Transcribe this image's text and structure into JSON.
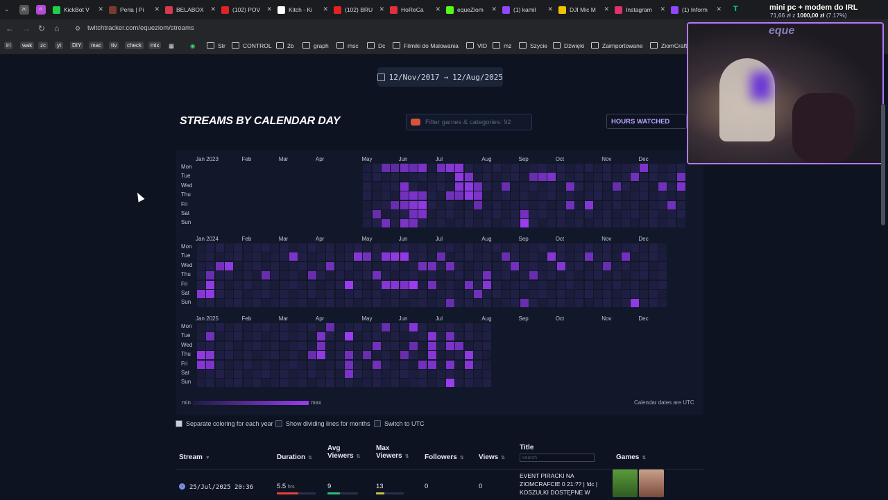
{
  "browser": {
    "tabs": [
      {
        "label": "KickBot V",
        "color": "#1fcf4a"
      },
      {
        "label": "Perła | Pi",
        "color": "#7a3b2e"
      },
      {
        "label": "BELABOX",
        "color": "#d43b50"
      },
      {
        "label": "(102) POV",
        "color": "#e52222"
      },
      {
        "label": "Kitch - Ki",
        "color": "#ffffff"
      },
      {
        "label": "(102) BRU",
        "color": "#e52222"
      },
      {
        "label": "HoReCa",
        "color": "#e0303c"
      },
      {
        "label": "equeZiom",
        "color": "#53fc18"
      },
      {
        "label": "(1) kamil",
        "color": "#9146ff"
      },
      {
        "label": "DJI Mic M",
        "color": "#f2c200"
      },
      {
        "label": "Instagram",
        "color": "#e1306c"
      },
      {
        "label": "(1) Inform",
        "color": "#9146ff"
      }
    ],
    "left_tabs": [
      "zc",
      "ri"
    ],
    "url": "twitchtracker.com/equeziom/streams",
    "bookmarks": {
      "tags": [
        "iri",
        "wak",
        "zc",
        "yt",
        "DIY",
        "mac",
        "ttv",
        "check",
        "mix"
      ],
      "folders": [
        "Str",
        "CONTROL",
        "2b",
        "graph",
        "msc",
        "Dc",
        "Filmiki do Malowania",
        "VID",
        "mz",
        "Szycie",
        "Dźwięki",
        "Zaimportowane",
        "ZiomCraft"
      ]
    }
  },
  "overlay": {
    "title": "mini pc + modem do IRL",
    "progress_prefix": "71,66 zł z",
    "progress_goal": "1000,00 zł",
    "progress_pct": "(7.17%)",
    "webcam_text": "eque"
  },
  "date_range": {
    "start": "12/Nov/2017",
    "arrow": "→",
    "end": "12/Aug/2025"
  },
  "section": {
    "title": "STREAMS BY CALENDAR DAY",
    "filter_placeholder": "Filter games & categories: 92",
    "hours_button": "HOURS WATCHED"
  },
  "chart_data": {
    "type": "heatmap",
    "title": "STREAMS BY CALENDAR DAY",
    "days": [
      "Mon",
      "Tue",
      "Wed",
      "Thu",
      "Fri",
      "Sat",
      "Sun"
    ],
    "years": [
      {
        "label": "Jan 2023",
        "months": [
          {
            "label": "Jan 2023",
            "week": 0
          },
          {
            "label": "Feb",
            "week": 5
          },
          {
            "label": "Mar",
            "week": 9
          },
          {
            "label": "Apr",
            "week": 13
          },
          {
            "label": "May",
            "week": 18
          },
          {
            "label": "Jun",
            "week": 22
          },
          {
            "label": "Jul",
            "week": 26
          },
          {
            "label": "Aug",
            "week": 31
          },
          {
            "label": "Sep",
            "week": 35
          },
          {
            "label": "Oct",
            "week": 39
          },
          {
            "label": "Nov",
            "week": 44
          },
          {
            "label": "Dec",
            "week": 48
          }
        ],
        "active_weeks": [
          18,
          52
        ],
        "streams": [
          [
            20,
            0,
            0.5
          ],
          [
            21,
            0,
            0.4
          ],
          [
            22,
            0,
            0.6
          ],
          [
            23,
            0,
            0.5
          ],
          [
            24,
            0,
            0.7
          ],
          [
            26,
            0,
            0.6
          ],
          [
            27,
            0,
            0.8
          ],
          [
            28,
            0,
            0.8
          ],
          [
            28,
            1,
            0.9
          ],
          [
            29,
            1,
            0.7
          ],
          [
            29,
            2,
            0.9
          ],
          [
            28,
            2,
            0.8
          ],
          [
            30,
            2,
            0.6
          ],
          [
            30,
            3,
            0.7
          ],
          [
            29,
            3,
            0.9
          ],
          [
            28,
            3,
            0.6
          ],
          [
            22,
            2,
            0.7
          ],
          [
            22,
            3,
            0.6
          ],
          [
            23,
            4,
            0.8
          ],
          [
            23,
            3,
            0.7
          ],
          [
            24,
            4,
            0.9
          ],
          [
            24,
            3,
            0.6
          ],
          [
            22,
            4,
            0.6
          ],
          [
            21,
            4,
            0.5
          ],
          [
            24,
            5,
            0.7
          ],
          [
            23,
            5,
            0.6
          ],
          [
            20,
            6,
            0.6
          ],
          [
            22,
            6,
            0.7
          ],
          [
            23,
            6,
            0.6
          ],
          [
            35,
            6,
            1.0
          ],
          [
            37,
            1,
            0.6
          ],
          [
            38,
            1,
            0.7
          ],
          [
            40,
            2,
            0.6
          ],
          [
            42,
            4,
            0.8
          ],
          [
            40,
            4,
            0.6
          ],
          [
            45,
            2,
            0.5
          ],
          [
            47,
            1,
            0.6
          ],
          [
            48,
            0,
            0.7
          ],
          [
            50,
            2,
            0.6
          ],
          [
            52,
            1,
            0.6
          ],
          [
            52,
            2,
            0.7
          ],
          [
            51,
            4,
            0.6
          ],
          [
            35,
            5,
            0.6
          ],
          [
            33,
            2,
            0.5
          ],
          [
            27,
            3,
            0.6
          ],
          [
            30,
            4,
            0.5
          ],
          [
            36,
            1,
            0.5
          ],
          [
            19,
            5,
            0.5
          ]
        ]
      },
      {
        "label": "Jan 2024",
        "months": [
          {
            "label": "Jan 2024",
            "week": 0
          },
          {
            "label": "Feb",
            "week": 5
          },
          {
            "label": "Mar",
            "week": 9
          },
          {
            "label": "Apr",
            "week": 13
          },
          {
            "label": "May",
            "week": 18
          },
          {
            "label": "Jun",
            "week": 22
          },
          {
            "label": "Jul",
            "week": 26
          },
          {
            "label": "Aug",
            "week": 31
          },
          {
            "label": "Sep",
            "week": 35
          },
          {
            "label": "Oct",
            "week": 39
          },
          {
            "label": "Nov",
            "week": 44
          },
          {
            "label": "Dec",
            "week": 48
          }
        ],
        "active_weeks": [
          0,
          50
        ],
        "streams": [
          [
            1,
            4,
            0.9
          ],
          [
            1,
            5,
            0.9
          ],
          [
            0,
            5,
            0.8
          ],
          [
            1,
            3,
            0.5
          ],
          [
            3,
            2,
            0.9
          ],
          [
            2,
            2,
            0.6
          ],
          [
            10,
            1,
            0.7
          ],
          [
            14,
            2,
            0.6
          ],
          [
            16,
            4,
            1.0
          ],
          [
            17,
            1,
            0.8
          ],
          [
            20,
            1,
            0.8
          ],
          [
            21,
            1,
            0.9
          ],
          [
            22,
            1,
            0.9
          ],
          [
            20,
            4,
            0.8
          ],
          [
            21,
            4,
            0.8
          ],
          [
            22,
            4,
            0.7
          ],
          [
            23,
            4,
            1.0
          ],
          [
            25,
            4,
            0.6
          ],
          [
            25,
            2,
            0.6
          ],
          [
            27,
            2,
            0.6
          ],
          [
            30,
            5,
            0.6
          ],
          [
            31,
            4,
            0.8
          ],
          [
            31,
            3,
            0.6
          ],
          [
            34,
            2,
            0.6
          ],
          [
            38,
            1,
            0.8
          ],
          [
            39,
            2,
            0.8
          ],
          [
            46,
            1,
            0.6
          ],
          [
            47,
            6,
            0.9
          ],
          [
            44,
            2,
            0.5
          ],
          [
            19,
            3,
            0.6
          ],
          [
            18,
            1,
            0.6
          ],
          [
            7,
            3,
            0.5
          ],
          [
            12,
            3,
            0.5
          ],
          [
            24,
            2,
            0.6
          ],
          [
            26,
            1,
            0.5
          ],
          [
            29,
            4,
            0.6
          ],
          [
            33,
            1,
            0.5
          ],
          [
            36,
            3,
            0.5
          ],
          [
            42,
            1,
            0.6
          ],
          [
            27,
            6,
            0.5
          ],
          [
            35,
            6,
            0.5
          ]
        ]
      },
      {
        "label": "Jan 2025",
        "months": [
          {
            "label": "Jan 2025",
            "week": 0
          },
          {
            "label": "Feb",
            "week": 5
          },
          {
            "label": "Mar",
            "week": 9
          },
          {
            "label": "Apr",
            "week": 13
          },
          {
            "label": "May",
            "week": 18
          },
          {
            "label": "Jun",
            "week": 22
          },
          {
            "label": "Jul",
            "week": 26
          },
          {
            "label": "Aug",
            "week": 31
          },
          {
            "label": "Sep",
            "week": 35
          },
          {
            "label": "Oct",
            "week": 39
          },
          {
            "label": "Nov",
            "week": 44
          },
          {
            "label": "Dec",
            "week": 48
          }
        ],
        "active_weeks": [
          0,
          31
        ],
        "streams": [
          [
            0,
            3,
            0.9
          ],
          [
            0,
            4,
            0.8
          ],
          [
            1,
            3,
            0.8
          ],
          [
            1,
            4,
            0.7
          ],
          [
            1,
            1,
            0.6
          ],
          [
            13,
            1,
            0.7
          ],
          [
            13,
            2,
            0.6
          ],
          [
            13,
            3,
            0.9
          ],
          [
            14,
            0,
            0.5
          ],
          [
            16,
            1,
            1.0
          ],
          [
            16,
            3,
            0.6
          ],
          [
            16,
            4,
            0.6
          ],
          [
            16,
            5,
            0.7
          ],
          [
            19,
            2,
            0.6
          ],
          [
            19,
            4,
            0.6
          ],
          [
            20,
            0,
            0.5
          ],
          [
            23,
            0,
            0.8
          ],
          [
            23,
            2,
            0.5
          ],
          [
            25,
            1,
            0.8
          ],
          [
            25,
            2,
            0.7
          ],
          [
            25,
            3,
            0.8
          ],
          [
            25,
            4,
            0.7
          ],
          [
            24,
            4,
            0.6
          ],
          [
            27,
            1,
            0.6
          ],
          [
            27,
            2,
            0.7
          ],
          [
            27,
            4,
            0.7
          ],
          [
            28,
            2,
            0.6
          ],
          [
            29,
            3,
            0.9
          ],
          [
            29,
            4,
            0.8
          ],
          [
            27,
            6,
            1.0
          ],
          [
            12,
            3,
            0.5
          ],
          [
            18,
            3,
            0.5
          ],
          [
            22,
            3,
            0.5
          ]
        ]
      }
    ],
    "legend": {
      "min": "min",
      "max": "max"
    },
    "note": "Calendar dates are UTC"
  },
  "options": [
    {
      "label": "Separate coloring for each year",
      "checked": true
    },
    {
      "label": "Show dividing lines for months",
      "checked": false
    },
    {
      "label": "Switch to UTC",
      "checked": false
    }
  ],
  "table": {
    "headers": {
      "stream": "Stream",
      "duration": "Duration",
      "avg1": "Avg",
      "avg2": "Viewers",
      "max1": "Max",
      "max2": "Viewers",
      "followers": "Followers",
      "views": "Views",
      "title": "Title",
      "search_placeholder": "search",
      "games": "Games"
    },
    "rows": [
      {
        "date": "25/Jul/2025 20:36",
        "duration": "5.5",
        "duration_unit": "hrs",
        "avg_viewers": "9",
        "max_viewers": "13",
        "followers": "0",
        "views": "0",
        "title_l1": "EVENT PIRACKI NA",
        "title_l2": "ZIOMCRAFCIE 0 21:?? | !dc |",
        "title_l3": "KOSZULKI DOSTĘPNE W",
        "duration_fill": 0.55,
        "avg_fill": 0.4,
        "max_fill": 0.3
      }
    ]
  }
}
